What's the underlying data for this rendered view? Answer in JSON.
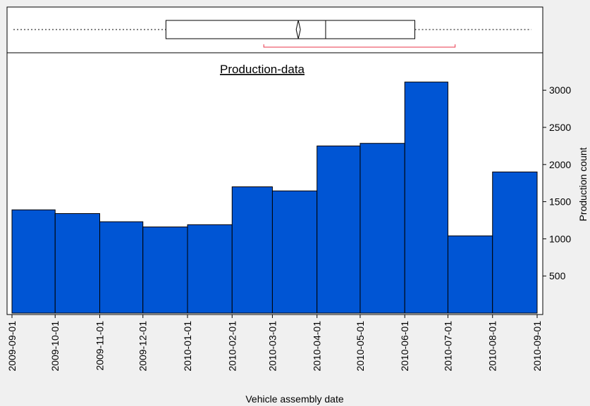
{
  "chart_data": {
    "type": "histogram",
    "title": "Production-data",
    "x_label": "Vehicle assembly date",
    "y_label": "Production count",
    "bins": [
      "2009-09-01",
      "2009-10-01",
      "2009-11-01",
      "2009-12-01",
      "2010-01-01",
      "2010-02-01",
      "2010-03-01",
      "2010-04-01",
      "2010-05-01",
      "2010-06-01",
      "2010-07-01",
      "2010-08-01",
      "2010-09-01"
    ],
    "values": [
      1390,
      1340,
      1230,
      1160,
      1190,
      1700,
      1645,
      2250,
      2285,
      3110,
      1040,
      1900
    ],
    "color": "#0055d4",
    "ylim": [
      0,
      3504
    ],
    "yticks": [
      500,
      1000,
      1500,
      2000,
      2500,
      3000
    ],
    "box": {
      "low": "2009-09-02",
      "q1": "2009-12-17",
      "mean": "2010-03-19",
      "median": "2010-04-07",
      "q3": "2010-06-08",
      "high": "2010-08-28"
    },
    "interval": {
      "start": "2010-02-23",
      "end": "2010-07-06",
      "color": "#e8344a"
    }
  }
}
